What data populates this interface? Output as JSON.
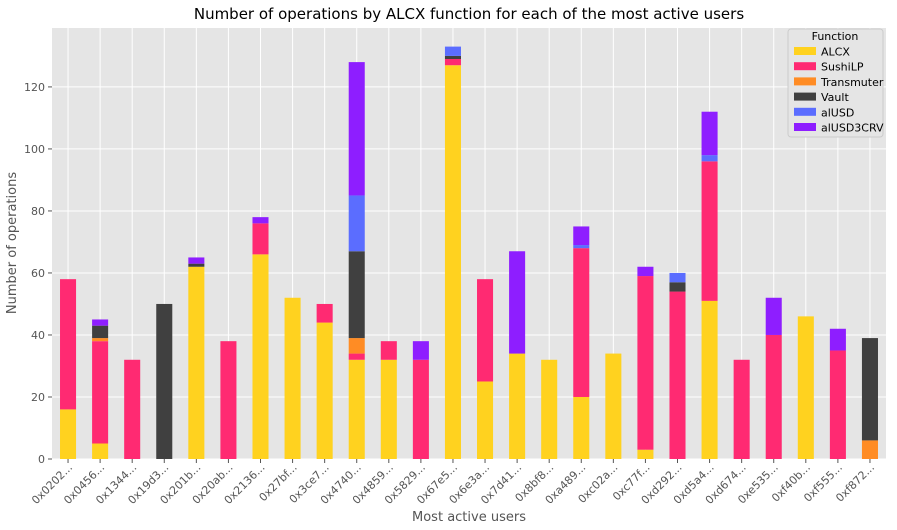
{
  "chart_data": {
    "type": "bar",
    "stacked": true,
    "title": "Number of operations by ALCX function for each of the most active users",
    "xlabel": "Most active users",
    "ylabel": "Number of operations",
    "ylim": [
      0,
      139
    ],
    "yticks": [
      0,
      20,
      40,
      60,
      80,
      100,
      120
    ],
    "grid": true,
    "legend_title": "Function",
    "legend_position": "top-right",
    "categories": [
      "0x0202...",
      "0x0456...",
      "0x1344...",
      "0x19d3...",
      "0x201b...",
      "0x20ab...",
      "0x2136...",
      "0x27bf...",
      "0x3ce7...",
      "0x4740...",
      "0x4859...",
      "0x5829...",
      "0x67e5...",
      "0x6e3a...",
      "0x7d41...",
      "0x8bf8...",
      "0xa489...",
      "0xc02a...",
      "0xc77f...",
      "0xd292...",
      "0xd5a4...",
      "0xd674...",
      "0xe535...",
      "0xf40b...",
      "0xf555...",
      "0xf872..."
    ],
    "series": [
      {
        "name": "ALCX",
        "color": "#FFD21F",
        "values": [
          16,
          5,
          0,
          0,
          62,
          0,
          66,
          52,
          44,
          32,
          32,
          0,
          127,
          25,
          34,
          32,
          20,
          34,
          3,
          0,
          51,
          0,
          0,
          46,
          0,
          0
        ]
      },
      {
        "name": "SushiLP",
        "color": "#FF2A72",
        "values": [
          42,
          33,
          32,
          0,
          0,
          38,
          10,
          0,
          6,
          2,
          6,
          32,
          2,
          33,
          0,
          0,
          48,
          0,
          56,
          54,
          45,
          32,
          40,
          0,
          35,
          0
        ]
      },
      {
        "name": "Transmuter",
        "color": "#FF8C24",
        "values": [
          0,
          1,
          0,
          0,
          0,
          0,
          0,
          0,
          0,
          5,
          0,
          0,
          0,
          0,
          0,
          0,
          0,
          0,
          0,
          0,
          0,
          0,
          0,
          0,
          0,
          6
        ]
      },
      {
        "name": "Vault",
        "color": "#404040",
        "values": [
          0,
          4,
          0,
          50,
          1,
          0,
          0,
          0,
          0,
          28,
          0,
          0,
          1,
          0,
          0,
          0,
          0,
          0,
          0,
          3,
          0,
          0,
          0,
          0,
          0,
          33
        ]
      },
      {
        "name": "alUSD",
        "color": "#5B6DFF",
        "values": [
          0,
          0,
          0,
          0,
          0,
          0,
          0,
          0,
          0,
          18,
          0,
          0,
          3,
          0,
          0,
          0,
          1,
          0,
          0,
          3,
          2,
          0,
          0,
          0,
          0,
          0
        ]
      },
      {
        "name": "alUSD3CRV",
        "color": "#8E1EFF",
        "values": [
          0,
          2,
          0,
          0,
          2,
          0,
          2,
          0,
          0,
          43,
          0,
          6,
          0,
          0,
          33,
          0,
          6,
          0,
          3,
          0,
          14,
          0,
          12,
          0,
          7,
          0
        ]
      }
    ]
  }
}
